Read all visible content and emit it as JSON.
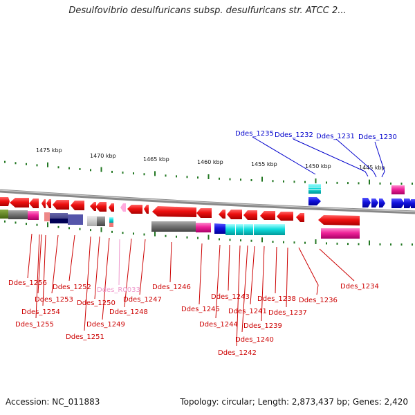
{
  "title": "Desulfovibrio desulfuricans subsp. desulfuricans str. ATCC 2...",
  "footer": {
    "accession": "Accession: NC_011883",
    "summary": "Topology: circular; Length: 2,873,437 bp; Genes: 2,420"
  },
  "scale_labels": [
    "1475 kbp",
    "1470 kbp",
    "1465 kbp",
    "1460 kbp",
    "1455 kbp",
    "1450 kbp",
    "1445 kbp"
  ],
  "colors": {
    "gene_red": "#ee1111",
    "gene_blue": "#1111dd",
    "gene_cyan": "#11dddd",
    "gene_magenta": "#ee2299",
    "gene_gray": "#777777",
    "label_red": "#cc0000",
    "label_blue": "#0000cc",
    "label_pink": "#ee99cc",
    "scale_green": "#227722",
    "backbone": "#888888"
  },
  "gene_labels_top": [
    "Ddes_1235",
    "Ddes_1232",
    "Ddes_1231",
    "Ddes_1230"
  ],
  "gene_labels_bottom": [
    "Ddes_1256",
    "Ddes_1252",
    "Ddes_R0033",
    "Ddes_1246",
    "Ddes_1253",
    "Ddes_1250",
    "Ddes_1247",
    "Ddes_1254",
    "Ddes_1248",
    "Ddes_1255",
    "Ddes_1249",
    "Ddes_1251",
    "Ddes_1245",
    "Ddes_1244",
    "Ddes_1243",
    "Ddes_1241",
    "Ddes_1239",
    "Ddes_1240",
    "Ddes_1242",
    "Ddes_1238",
    "Ddes_1237",
    "Ddes_1236",
    "Ddes_1234"
  ]
}
